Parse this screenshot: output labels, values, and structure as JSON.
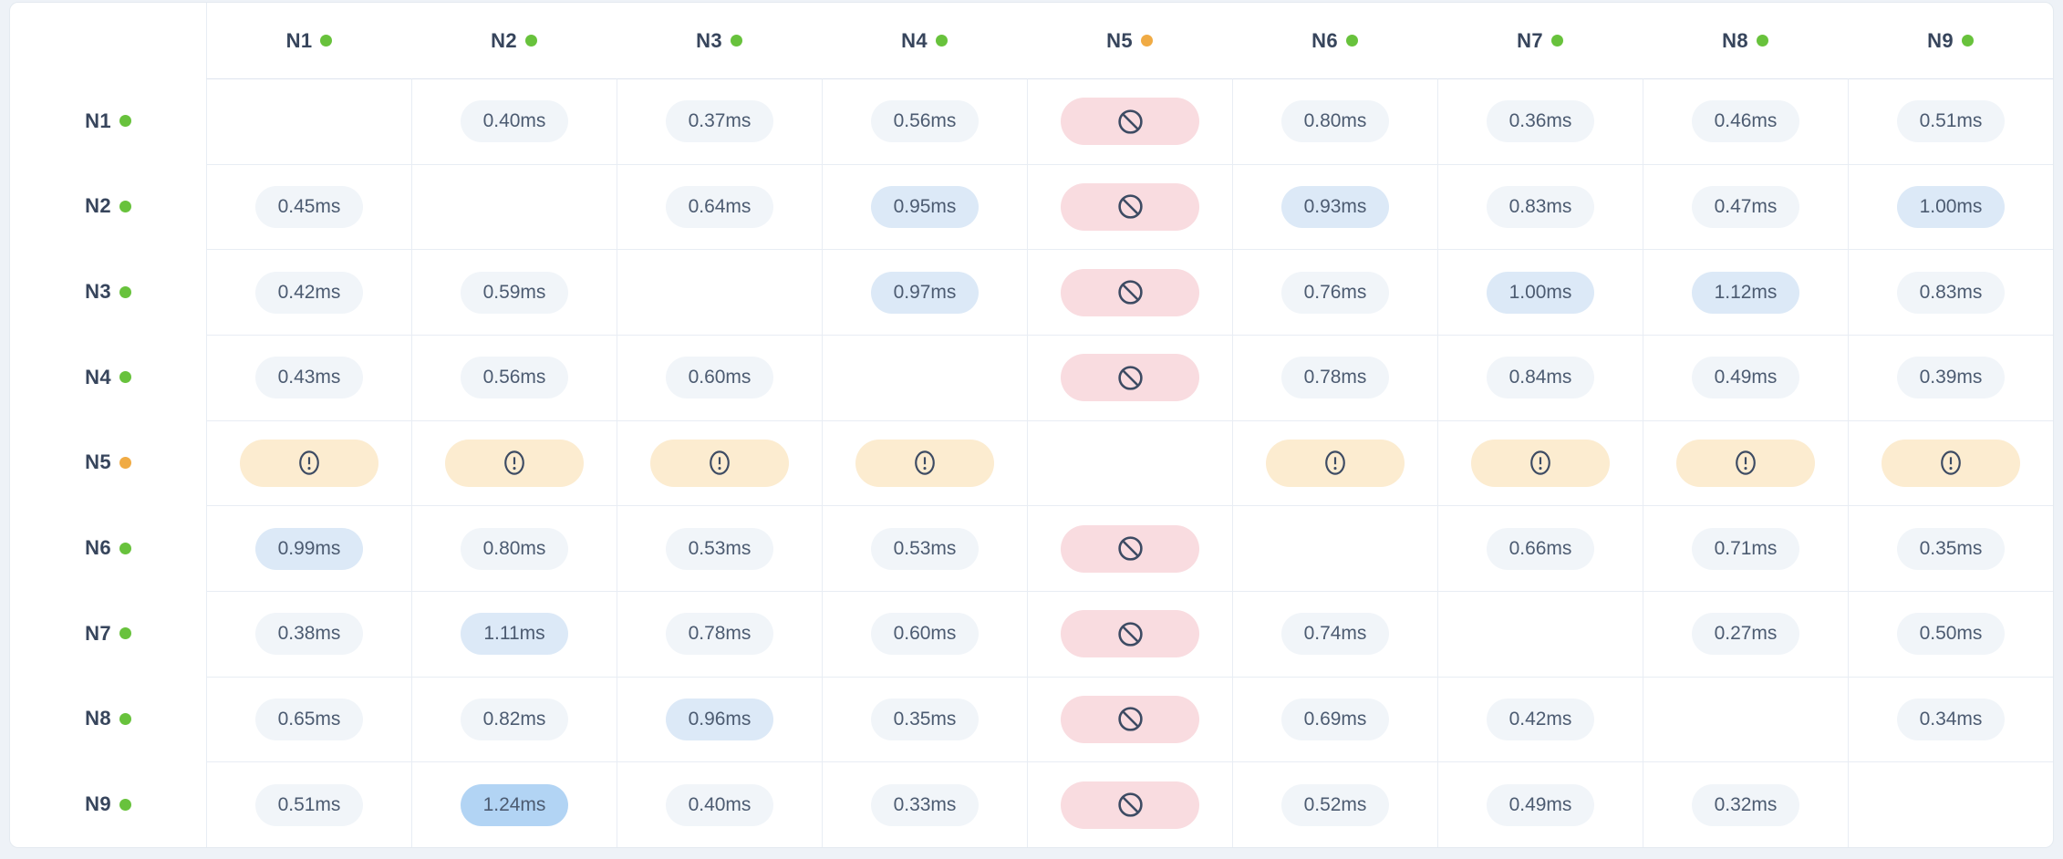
{
  "colors": {
    "page_bg": "#eef2f7",
    "card_bg": "#ffffff",
    "card_border": "#e4eaf0",
    "border": "#e8edf4",
    "header_border": "#dde4ee",
    "online_dot": "#68c23c",
    "warning_dot": "#f0ab44",
    "pill_normal_bg": "#f1f5f9",
    "pill_elevated_bg": "#dce9f7",
    "pill_high_bg": "#b2d4f4",
    "pill_blocked_bg": "#f9dce0",
    "pill_warn_bg": "#fcecd0",
    "text": "#4c5b71",
    "header_text": "#37455c",
    "icon": "#3d4b63"
  },
  "icons": {
    "blocked": "no-entry-icon",
    "warning": "alert-circle-icon",
    "online_dot": "online-status-dot",
    "warning_dot": "warning-status-dot"
  },
  "columns": [
    {
      "label": "N1",
      "status": "online"
    },
    {
      "label": "N2",
      "status": "online"
    },
    {
      "label": "N3",
      "status": "online"
    },
    {
      "label": "N4",
      "status": "online"
    },
    {
      "label": "N5",
      "status": "warning"
    },
    {
      "label": "N6",
      "status": "online"
    },
    {
      "label": "N7",
      "status": "online"
    },
    {
      "label": "N8",
      "status": "online"
    },
    {
      "label": "N9",
      "status": "online"
    }
  ],
  "rows": [
    {
      "label": "N1",
      "status": "online",
      "cells": [
        {
          "type": "self"
        },
        {
          "type": "value",
          "text": "0.40ms",
          "level": "normal"
        },
        {
          "type": "value",
          "text": "0.37ms",
          "level": "normal"
        },
        {
          "type": "value",
          "text": "0.56ms",
          "level": "normal"
        },
        {
          "type": "blocked"
        },
        {
          "type": "value",
          "text": "0.80ms",
          "level": "normal"
        },
        {
          "type": "value",
          "text": "0.36ms",
          "level": "normal"
        },
        {
          "type": "value",
          "text": "0.46ms",
          "level": "normal"
        },
        {
          "type": "value",
          "text": "0.51ms",
          "level": "normal"
        }
      ]
    },
    {
      "label": "N2",
      "status": "online",
      "cells": [
        {
          "type": "value",
          "text": "0.45ms",
          "level": "normal"
        },
        {
          "type": "self"
        },
        {
          "type": "value",
          "text": "0.64ms",
          "level": "normal"
        },
        {
          "type": "value",
          "text": "0.95ms",
          "level": "elevated"
        },
        {
          "type": "blocked"
        },
        {
          "type": "value",
          "text": "0.93ms",
          "level": "elevated"
        },
        {
          "type": "value",
          "text": "0.83ms",
          "level": "normal"
        },
        {
          "type": "value",
          "text": "0.47ms",
          "level": "normal"
        },
        {
          "type": "value",
          "text": "1.00ms",
          "level": "elevated"
        }
      ]
    },
    {
      "label": "N3",
      "status": "online",
      "cells": [
        {
          "type": "value",
          "text": "0.42ms",
          "level": "normal"
        },
        {
          "type": "value",
          "text": "0.59ms",
          "level": "normal"
        },
        {
          "type": "self"
        },
        {
          "type": "value",
          "text": "0.97ms",
          "level": "elevated"
        },
        {
          "type": "blocked"
        },
        {
          "type": "value",
          "text": "0.76ms",
          "level": "normal"
        },
        {
          "type": "value",
          "text": "1.00ms",
          "level": "elevated"
        },
        {
          "type": "value",
          "text": "1.12ms",
          "level": "elevated"
        },
        {
          "type": "value",
          "text": "0.83ms",
          "level": "normal"
        }
      ]
    },
    {
      "label": "N4",
      "status": "online",
      "cells": [
        {
          "type": "value",
          "text": "0.43ms",
          "level": "normal"
        },
        {
          "type": "value",
          "text": "0.56ms",
          "level": "normal"
        },
        {
          "type": "value",
          "text": "0.60ms",
          "level": "normal"
        },
        {
          "type": "self"
        },
        {
          "type": "blocked"
        },
        {
          "type": "value",
          "text": "0.78ms",
          "level": "normal"
        },
        {
          "type": "value",
          "text": "0.84ms",
          "level": "normal"
        },
        {
          "type": "value",
          "text": "0.49ms",
          "level": "normal"
        },
        {
          "type": "value",
          "text": "0.39ms",
          "level": "normal"
        }
      ]
    },
    {
      "label": "N5",
      "status": "warning",
      "cells": [
        {
          "type": "warning"
        },
        {
          "type": "warning"
        },
        {
          "type": "warning"
        },
        {
          "type": "warning"
        },
        {
          "type": "self"
        },
        {
          "type": "warning"
        },
        {
          "type": "warning"
        },
        {
          "type": "warning"
        },
        {
          "type": "warning"
        }
      ]
    },
    {
      "label": "N6",
      "status": "online",
      "cells": [
        {
          "type": "value",
          "text": "0.99ms",
          "level": "elevated"
        },
        {
          "type": "value",
          "text": "0.80ms",
          "level": "normal"
        },
        {
          "type": "value",
          "text": "0.53ms",
          "level": "normal"
        },
        {
          "type": "value",
          "text": "0.53ms",
          "level": "normal"
        },
        {
          "type": "blocked"
        },
        {
          "type": "self"
        },
        {
          "type": "value",
          "text": "0.66ms",
          "level": "normal"
        },
        {
          "type": "value",
          "text": "0.71ms",
          "level": "normal"
        },
        {
          "type": "value",
          "text": "0.35ms",
          "level": "normal"
        }
      ]
    },
    {
      "label": "N7",
      "status": "online",
      "cells": [
        {
          "type": "value",
          "text": "0.38ms",
          "level": "normal"
        },
        {
          "type": "value",
          "text": "1.11ms",
          "level": "elevated"
        },
        {
          "type": "value",
          "text": "0.78ms",
          "level": "normal"
        },
        {
          "type": "value",
          "text": "0.60ms",
          "level": "normal"
        },
        {
          "type": "blocked"
        },
        {
          "type": "value",
          "text": "0.74ms",
          "level": "normal"
        },
        {
          "type": "self"
        },
        {
          "type": "value",
          "text": "0.27ms",
          "level": "normal"
        },
        {
          "type": "value",
          "text": "0.50ms",
          "level": "normal"
        }
      ]
    },
    {
      "label": "N8",
      "status": "online",
      "cells": [
        {
          "type": "value",
          "text": "0.65ms",
          "level": "normal"
        },
        {
          "type": "value",
          "text": "0.82ms",
          "level": "normal"
        },
        {
          "type": "value",
          "text": "0.96ms",
          "level": "elevated"
        },
        {
          "type": "value",
          "text": "0.35ms",
          "level": "normal"
        },
        {
          "type": "blocked"
        },
        {
          "type": "value",
          "text": "0.69ms",
          "level": "normal"
        },
        {
          "type": "value",
          "text": "0.42ms",
          "level": "normal"
        },
        {
          "type": "self"
        },
        {
          "type": "value",
          "text": "0.34ms",
          "level": "normal"
        }
      ]
    },
    {
      "label": "N9",
      "status": "online",
      "cells": [
        {
          "type": "value",
          "text": "0.51ms",
          "level": "normal"
        },
        {
          "type": "value",
          "text": "1.24ms",
          "level": "high"
        },
        {
          "type": "value",
          "text": "0.40ms",
          "level": "normal"
        },
        {
          "type": "value",
          "text": "0.33ms",
          "level": "normal"
        },
        {
          "type": "blocked"
        },
        {
          "type": "value",
          "text": "0.52ms",
          "level": "normal"
        },
        {
          "type": "value",
          "text": "0.49ms",
          "level": "normal"
        },
        {
          "type": "value",
          "text": "0.32ms",
          "level": "normal"
        },
        {
          "type": "self"
        }
      ]
    }
  ]
}
